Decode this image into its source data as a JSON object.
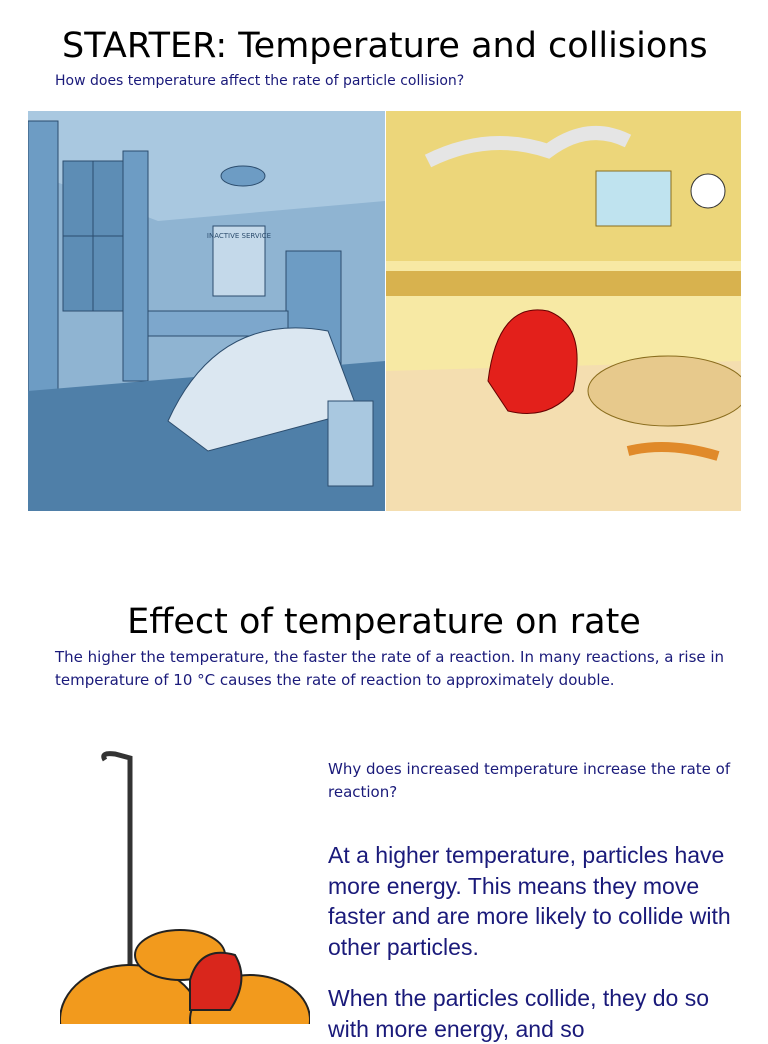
{
  "slide1": {
    "title": "STARTER:  Temperature and collisions",
    "subtitle": "How does temperature affect the rate of particle collision?",
    "poster": "INACTIVE SERVICE"
  },
  "slide2": {
    "title": "Effect of temperature on rate",
    "intro": "The higher the temperature, the faster the rate of a reaction. In many reactions, a rise in temperature of 10 °C causes the rate of reaction to approximately double.",
    "question": "Why does increased temperature increase the rate of reaction?",
    "paragraphs": [
      "At a higher temperature, particles have more energy. This means they move faster and are more likely to collide with other particles.",
      "When the particles collide, they do so with more energy, and so"
    ]
  }
}
